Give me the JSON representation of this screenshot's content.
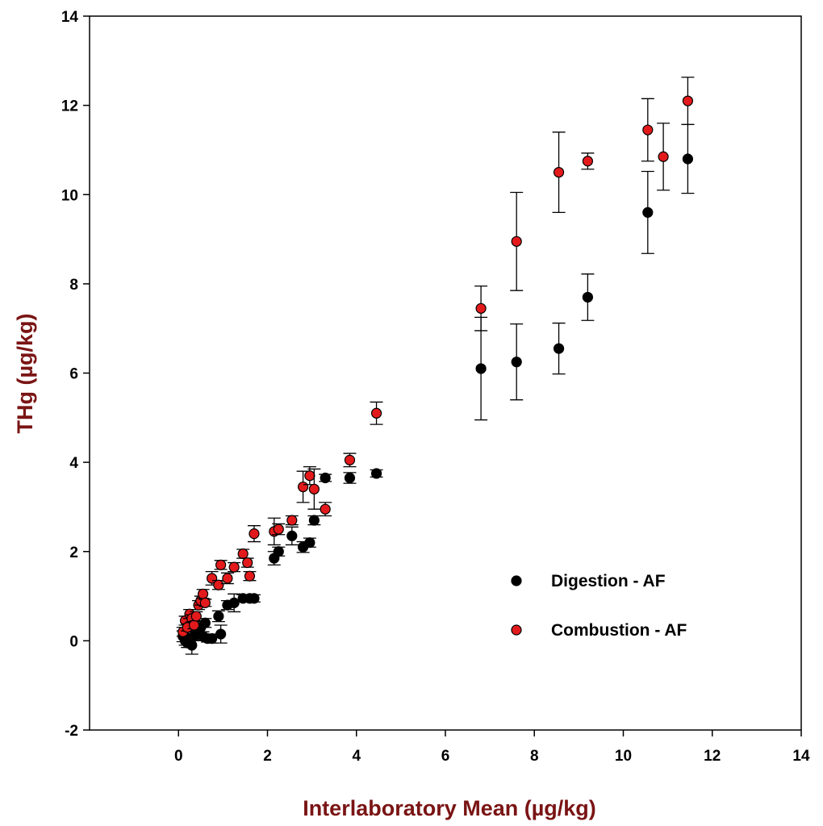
{
  "chart_data": {
    "type": "scatter",
    "title": "",
    "xlabel": "Interlaboratory Mean (µg/kg)",
    "ylabel": "THg (µg/kg)",
    "xlim": [
      -2,
      14
    ],
    "ylim": [
      -2,
      14
    ],
    "xticks": [
      "0",
      "2",
      "4",
      "6",
      "8",
      "10",
      "12",
      "14"
    ],
    "yticks": [
      "-2",
      "0",
      "2",
      "4",
      "6",
      "8",
      "10",
      "12",
      "14"
    ],
    "grid": false,
    "legend": "lower-right",
    "series": [
      {
        "name": "Digestion - AF",
        "color": "#000000",
        "points": [
          {
            "x": 0.1,
            "y": 0.1,
            "err": 0.12
          },
          {
            "x": 0.15,
            "y": 0.0,
            "err": 0.1
          },
          {
            "x": 0.2,
            "y": -0.05,
            "err": 0.1
          },
          {
            "x": 0.25,
            "y": 0.05,
            "err": 0.12
          },
          {
            "x": 0.3,
            "y": -0.1,
            "err": 0.2
          },
          {
            "x": 0.35,
            "y": 0.1,
            "err": 0.1
          },
          {
            "x": 0.4,
            "y": 0.2,
            "err": 0.1
          },
          {
            "x": 0.45,
            "y": 0.15,
            "err": 0.12
          },
          {
            "x": 0.5,
            "y": 0.3,
            "err": 0.1
          },
          {
            "x": 0.55,
            "y": 0.1,
            "err": 0.1
          },
          {
            "x": 0.6,
            "y": 0.4,
            "err": 0.1
          },
          {
            "x": 0.65,
            "y": 0.05,
            "err": 0.08
          },
          {
            "x": 0.75,
            "y": 0.05,
            "err": 0.1
          },
          {
            "x": 0.9,
            "y": 0.55,
            "err": 0.12
          },
          {
            "x": 0.95,
            "y": 0.15,
            "err": 0.2
          },
          {
            "x": 1.1,
            "y": 0.8,
            "err": 0.1
          },
          {
            "x": 1.25,
            "y": 0.85,
            "err": 0.2
          },
          {
            "x": 1.45,
            "y": 0.95,
            "err": 0.08
          },
          {
            "x": 1.6,
            "y": 0.95,
            "err": 0.08
          },
          {
            "x": 1.7,
            "y": 0.95,
            "err": 0.08
          },
          {
            "x": 2.15,
            "y": 1.85,
            "err": 0.15
          },
          {
            "x": 2.25,
            "y": 2.0,
            "err": 0.1
          },
          {
            "x": 2.55,
            "y": 2.35,
            "err": 0.2
          },
          {
            "x": 2.8,
            "y": 2.1,
            "err": 0.12
          },
          {
            "x": 2.95,
            "y": 2.2,
            "err": 0.1
          },
          {
            "x": 3.05,
            "y": 2.7,
            "err": 0.1
          },
          {
            "x": 3.3,
            "y": 3.65,
            "err": 0.08
          },
          {
            "x": 3.85,
            "y": 3.65,
            "err": 0.12
          },
          {
            "x": 4.45,
            "y": 3.75,
            "err": 0.08
          },
          {
            "x": 6.8,
            "y": 6.1,
            "err": 1.15
          },
          {
            "x": 7.6,
            "y": 6.25,
            "err": 0.85
          },
          {
            "x": 8.55,
            "y": 6.55,
            "err": 0.57
          },
          {
            "x": 9.2,
            "y": 7.7,
            "err": 0.52
          },
          {
            "x": 10.55,
            "y": 9.6,
            "err": 0.92
          },
          {
            "x": 11.45,
            "y": 10.8,
            "err": 0.77
          }
        ]
      },
      {
        "name": "Combustion - AF",
        "color": "#e31a1c",
        "points": [
          {
            "x": 0.1,
            "y": 0.2,
            "err": 0.1
          },
          {
            "x": 0.15,
            "y": 0.45,
            "err": 0.1
          },
          {
            "x": 0.2,
            "y": 0.3,
            "err": 0.08
          },
          {
            "x": 0.25,
            "y": 0.6,
            "err": 0.1
          },
          {
            "x": 0.3,
            "y": 0.5,
            "err": 0.08
          },
          {
            "x": 0.35,
            "y": 0.35,
            "err": 0.08
          },
          {
            "x": 0.4,
            "y": 0.55,
            "err": 0.1
          },
          {
            "x": 0.45,
            "y": 0.8,
            "err": 0.1
          },
          {
            "x": 0.5,
            "y": 0.9,
            "err": 0.1
          },
          {
            "x": 0.55,
            "y": 1.05,
            "err": 0.1
          },
          {
            "x": 0.6,
            "y": 0.85,
            "err": 0.08
          },
          {
            "x": 0.75,
            "y": 1.4,
            "err": 0.15
          },
          {
            "x": 0.9,
            "y": 1.25,
            "err": 0.1
          },
          {
            "x": 0.95,
            "y": 1.7,
            "err": 0.1
          },
          {
            "x": 1.1,
            "y": 1.4,
            "err": 0.12
          },
          {
            "x": 1.25,
            "y": 1.65,
            "err": 0.1
          },
          {
            "x": 1.45,
            "y": 1.95,
            "err": 0.1
          },
          {
            "x": 1.55,
            "y": 1.75,
            "err": 0.1
          },
          {
            "x": 1.6,
            "y": 1.45,
            "err": 0.1
          },
          {
            "x": 1.7,
            "y": 2.4,
            "err": 0.18
          },
          {
            "x": 2.15,
            "y": 2.45,
            "err": 0.3
          },
          {
            "x": 2.25,
            "y": 2.5,
            "err": 0.12
          },
          {
            "x": 2.55,
            "y": 2.7,
            "err": 0.1
          },
          {
            "x": 2.8,
            "y": 3.45,
            "err": 0.35
          },
          {
            "x": 2.95,
            "y": 3.7,
            "err": 0.2
          },
          {
            "x": 3.05,
            "y": 3.4,
            "err": 0.45
          },
          {
            "x": 3.3,
            "y": 2.95,
            "err": 0.15
          },
          {
            "x": 3.85,
            "y": 4.05,
            "err": 0.15
          },
          {
            "x": 4.45,
            "y": 5.1,
            "err": 0.25
          },
          {
            "x": 6.8,
            "y": 7.45,
            "err": 0.5
          },
          {
            "x": 7.6,
            "y": 8.95,
            "err": 1.1
          },
          {
            "x": 8.55,
            "y": 10.5,
            "err": 0.9
          },
          {
            "x": 9.2,
            "y": 10.75,
            "err": 0.18
          },
          {
            "x": 10.55,
            "y": 11.45,
            "err": 0.7
          },
          {
            "x": 10.9,
            "y": 10.85,
            "err": 0.75
          },
          {
            "x": 11.45,
            "y": 12.1,
            "err": 0.53
          }
        ]
      }
    ]
  }
}
